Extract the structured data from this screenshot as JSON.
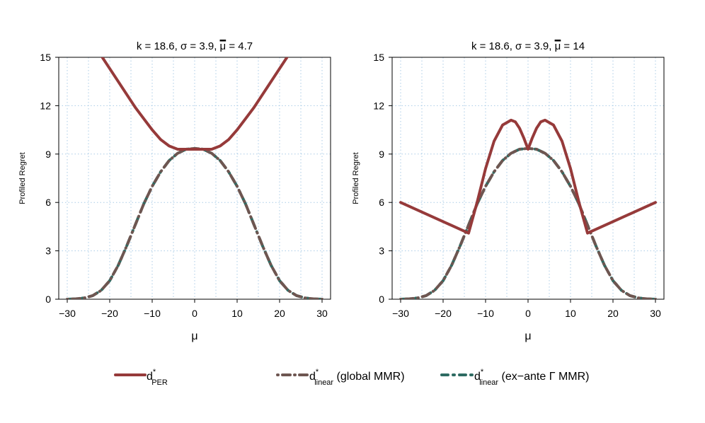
{
  "figure": {
    "legend": [
      {
        "id": "per",
        "main": "d",
        "sup": "*",
        "sub": "PER",
        "extra": ""
      },
      {
        "id": "global",
        "main": "d",
        "sup": "*",
        "sub": "linear",
        "extra": " (global MMR)"
      },
      {
        "id": "exante",
        "main": "d",
        "sup": "*",
        "sub": "linear",
        "extra": " (ex−ante Γ MMR)"
      }
    ],
    "colors": {
      "per": "#963a3a",
      "global": "#6e5651",
      "exante": "#2e6b62",
      "grid": "#a9cbe6",
      "axis": "#000000"
    }
  },
  "chart_data": [
    {
      "type": "line",
      "title_prefix": "k = 18.6, σ = 3.9, ",
      "title_mu": "μ",
      "title_suffix": " = 4.7",
      "xlabel": "μ",
      "ylabel": "Profiled Regret",
      "xlim": [
        -32,
        32
      ],
      "ylim": [
        0,
        15
      ],
      "xticks": [
        -30,
        -20,
        -10,
        0,
        10,
        20,
        30
      ],
      "xtick_labels": [
        "−30",
        "−20",
        "−10",
        "0",
        "10",
        "20",
        "30"
      ],
      "yticks": [
        0,
        3,
        6,
        9,
        12,
        15
      ],
      "xgrid": [
        -30,
        -25,
        -20,
        -15,
        -10,
        -5,
        0,
        5,
        10,
        15,
        20,
        25,
        30
      ],
      "ygrid": [
        0,
        3,
        6,
        9,
        12,
        15
      ],
      "series": [
        {
          "key": "per",
          "x": [
            -22,
            -20,
            -18,
            -16,
            -14,
            -12,
            -10,
            -8,
            -6,
            -4,
            -2,
            0,
            2,
            4,
            6,
            8,
            10,
            12,
            14,
            16,
            18,
            20,
            22
          ],
          "y": [
            15.1,
            14.3,
            13.5,
            12.7,
            11.9,
            11.2,
            10.5,
            9.9,
            9.5,
            9.3,
            9.3,
            9.3,
            9.3,
            9.3,
            9.5,
            9.9,
            10.5,
            11.2,
            11.9,
            12.7,
            13.5,
            14.3,
            15.1
          ]
        },
        {
          "key": "global",
          "x": [
            -30,
            -28,
            -26,
            -24,
            -22,
            -20,
            -18,
            -16,
            -14,
            -12,
            -10,
            -8,
            -6,
            -4,
            -2,
            0,
            2,
            4,
            6,
            8,
            10,
            12,
            14,
            16,
            18,
            20,
            22,
            24,
            26,
            28,
            30
          ],
          "y": [
            0.0,
            0.02,
            0.08,
            0.22,
            0.55,
            1.15,
            2.1,
            3.3,
            4.6,
            5.9,
            7.0,
            7.9,
            8.6,
            9.05,
            9.3,
            9.35,
            9.3,
            9.05,
            8.6,
            7.9,
            7.0,
            5.9,
            4.6,
            3.3,
            2.1,
            1.15,
            0.55,
            0.22,
            0.08,
            0.02,
            0.0
          ]
        },
        {
          "key": "exante",
          "x": [
            -30,
            -28,
            -26,
            -24,
            -22,
            -20,
            -18,
            -16,
            -14,
            -12,
            -10,
            -8,
            -6,
            -4,
            -2,
            0,
            2,
            4,
            6,
            8,
            10,
            12,
            14,
            16,
            18,
            20,
            22,
            24,
            26,
            28,
            30
          ],
          "y": [
            0.0,
            0.02,
            0.08,
            0.22,
            0.55,
            1.15,
            2.1,
            3.3,
            4.6,
            5.9,
            7.0,
            7.9,
            8.6,
            9.05,
            9.3,
            9.35,
            9.3,
            9.05,
            8.6,
            7.9,
            7.0,
            5.9,
            4.6,
            3.3,
            2.1,
            1.15,
            0.55,
            0.22,
            0.08,
            0.02,
            0.0
          ]
        }
      ]
    },
    {
      "type": "line",
      "title_prefix": "k = 18.6, σ = 3.9, ",
      "title_mu": "μ",
      "title_suffix": " = 14",
      "xlabel": "μ",
      "ylabel": "Profiled Regret",
      "xlim": [
        -32,
        32
      ],
      "ylim": [
        0,
        15
      ],
      "xticks": [
        -30,
        -20,
        -10,
        0,
        10,
        20,
        30
      ],
      "xtick_labels": [
        "−30",
        "−20",
        "−10",
        "0",
        "10",
        "20",
        "30"
      ],
      "yticks": [
        0,
        3,
        6,
        9,
        12,
        15
      ],
      "xgrid": [
        -30,
        -25,
        -20,
        -15,
        -10,
        -5,
        0,
        5,
        10,
        15,
        20,
        25,
        30
      ],
      "ygrid": [
        0,
        3,
        6,
        9,
        12,
        15
      ],
      "series": [
        {
          "key": "per",
          "x": [
            -30,
            -14,
            -12,
            -10,
            -8,
            -6,
            -4,
            -3,
            -2,
            -1,
            0,
            1,
            2,
            3,
            4,
            6,
            8,
            10,
            12,
            14,
            30
          ],
          "y": [
            6.0,
            4.1,
            6.0,
            8.1,
            9.8,
            10.8,
            11.1,
            11.0,
            10.6,
            10.0,
            9.3,
            10.0,
            10.6,
            11.0,
            11.1,
            10.8,
            9.8,
            8.1,
            6.0,
            4.1,
            6.0
          ]
        },
        {
          "key": "global",
          "x": [
            -30,
            -28,
            -26,
            -24,
            -22,
            -20,
            -18,
            -16,
            -14,
            -12,
            -10,
            -8,
            -6,
            -4,
            -2,
            0,
            2,
            4,
            6,
            8,
            10,
            12,
            14,
            16,
            18,
            20,
            22,
            24,
            26,
            28,
            30
          ],
          "y": [
            0.0,
            0.02,
            0.08,
            0.22,
            0.55,
            1.15,
            2.1,
            3.3,
            4.6,
            5.9,
            7.0,
            7.9,
            8.6,
            9.05,
            9.3,
            9.35,
            9.3,
            9.05,
            8.6,
            7.9,
            7.0,
            5.9,
            4.6,
            3.3,
            2.1,
            1.15,
            0.55,
            0.22,
            0.08,
            0.02,
            0.0
          ]
        },
        {
          "key": "exante",
          "x": [
            -30,
            -28,
            -26,
            -24,
            -22,
            -20,
            -18,
            -16,
            -14,
            -12,
            -10,
            -8,
            -6,
            -4,
            -2,
            0,
            2,
            4,
            6,
            8,
            10,
            12,
            14,
            16,
            18,
            20,
            22,
            24,
            26,
            28,
            30
          ],
          "y": [
            0.0,
            0.02,
            0.08,
            0.22,
            0.55,
            1.15,
            2.1,
            3.3,
            4.6,
            5.9,
            7.0,
            7.9,
            8.6,
            9.05,
            9.3,
            9.35,
            9.3,
            9.05,
            8.6,
            7.9,
            7.0,
            5.9,
            4.6,
            3.3,
            2.1,
            1.15,
            0.55,
            0.22,
            0.08,
            0.02,
            0.0
          ]
        }
      ]
    }
  ]
}
